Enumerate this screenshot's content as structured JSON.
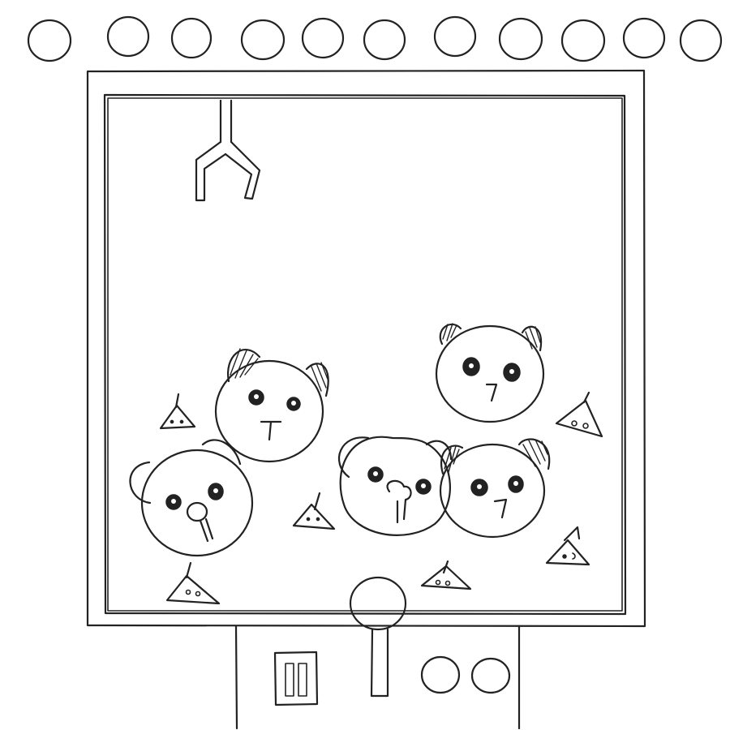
{
  "game": {
    "type": "claw-machine",
    "marquee_lights_count": 11,
    "prizes": {
      "panda_plushies": 3,
      "bear_plushies": 2,
      "small_triangle_plushies": 6
    },
    "controls": {
      "coin_slot_icon": "coin-slot-icon",
      "joystick_icon": "joystick-icon",
      "buttons_count": 2
    },
    "colors": {
      "ink": "#222222",
      "background": "#ffffff"
    }
  }
}
